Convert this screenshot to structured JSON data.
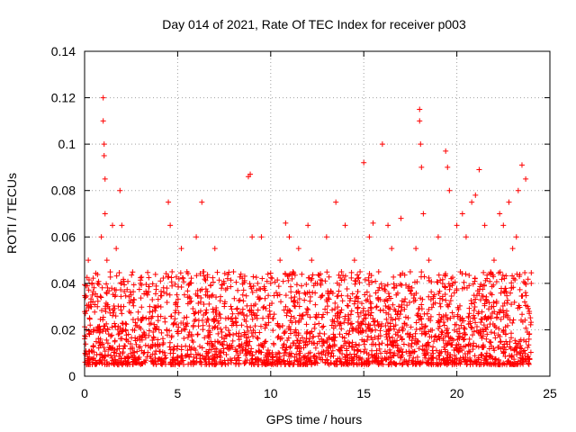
{
  "chart_data": {
    "type": "scatter",
    "title": "Day 014 of 2021, Rate Of TEC Index for receiver p003",
    "xlabel": "GPS time / hours",
    "ylabel": "ROTI / TECUs",
    "xlim": [
      0,
      25
    ],
    "ylim": [
      0,
      0.14
    ],
    "xticks": [
      "0",
      "5",
      "10",
      "15",
      "20",
      "25"
    ],
    "yticks": [
      "0",
      "0.02",
      "0.04",
      "0.06",
      "0.08",
      "0.1",
      "0.12",
      "0.14"
    ],
    "grid": true,
    "marker": "+",
    "series_color": "#ff0000",
    "series": [
      {
        "name": "ROTI",
        "x": [
          0.1,
          0.2,
          0.3,
          0.5,
          0.7,
          0.9,
          1.0,
          1.0,
          1.05,
          1.05,
          1.1,
          1.1,
          1.2,
          1.5,
          1.7,
          1.9,
          2.0,
          2.1,
          2.2,
          2.5,
          3.0,
          3.3,
          3.5,
          4.0,
          4.5,
          4.6,
          4.7,
          5.0,
          5.2,
          5.5,
          6.0,
          6.3,
          6.4,
          6.5,
          7.0,
          7.5,
          8.0,
          8.5,
          8.8,
          8.9,
          9.0,
          9.3,
          9.5,
          10.0,
          10.5,
          10.8,
          11.0,
          11.2,
          11.5,
          12.0,
          12.2,
          12.5,
          13.0,
          13.5,
          13.8,
          14.0,
          14.5,
          14.8,
          15.0,
          15.3,
          15.5,
          15.8,
          16.0,
          16.3,
          16.5,
          17.0,
          17.5,
          17.8,
          18.0,
          18.0,
          18.05,
          18.1,
          18.2,
          18.5,
          19.0,
          19.4,
          19.5,
          19.6,
          20.0,
          20.3,
          20.5,
          20.8,
          21.0,
          21.2,
          21.5,
          22.0,
          22.3,
          22.5,
          22.8,
          23.0,
          23.2,
          23.3,
          23.5,
          23.7,
          24.0
        ],
        "y": [
          0.02,
          0.05,
          0.03,
          0.02,
          0.04,
          0.06,
          0.12,
          0.11,
          0.1,
          0.095,
          0.085,
          0.07,
          0.05,
          0.065,
          0.055,
          0.08,
          0.065,
          0.03,
          0.02,
          0.035,
          0.04,
          0.025,
          0.03,
          0.02,
          0.075,
          0.065,
          0.045,
          0.03,
          0.055,
          0.045,
          0.06,
          0.075,
          0.045,
          0.035,
          0.055,
          0.04,
          0.045,
          0.035,
          0.086,
          0.087,
          0.06,
          0.04,
          0.06,
          0.04,
          0.05,
          0.066,
          0.06,
          0.045,
          0.055,
          0.065,
          0.05,
          0.04,
          0.06,
          0.075,
          0.045,
          0.065,
          0.05,
          0.045,
          0.092,
          0.06,
          0.066,
          0.045,
          0.1,
          0.065,
          0.055,
          0.068,
          0.045,
          0.055,
          0.115,
          0.11,
          0.1,
          0.09,
          0.07,
          0.05,
          0.06,
          0.097,
          0.09,
          0.08,
          0.065,
          0.07,
          0.06,
          0.075,
          0.078,
          0.089,
          0.065,
          0.05,
          0.07,
          0.065,
          0.075,
          0.055,
          0.06,
          0.08,
          0.091,
          0.085,
          0.04
        ]
      }
    ],
    "background_band": {
      "ymin": 0.005,
      "ymax": 0.02,
      "description": "dense red markers across all hours"
    }
  }
}
